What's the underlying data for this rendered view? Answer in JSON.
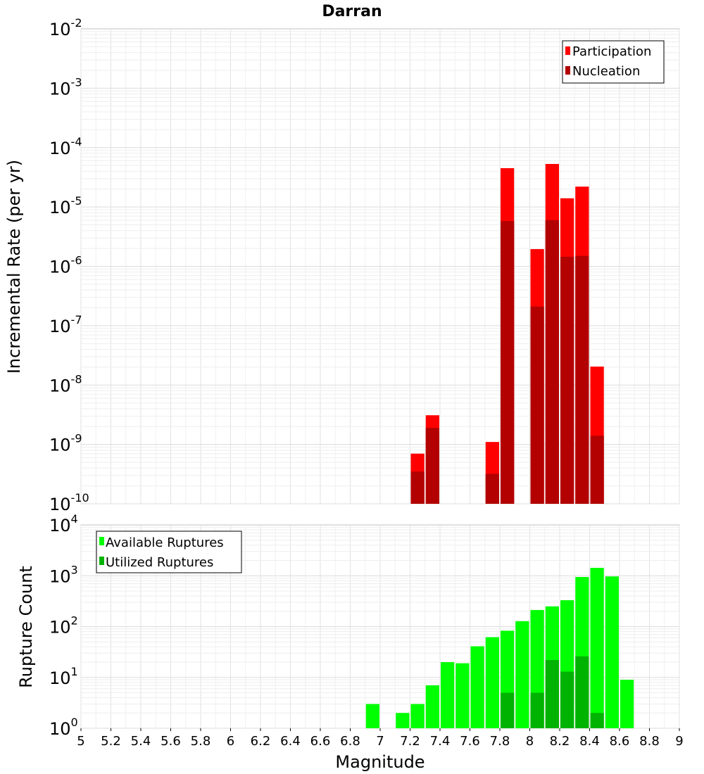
{
  "chart_data": [
    {
      "type": "bar",
      "title": "Darran",
      "ylabel": "Incremental Rate (per yr)",
      "yscale": "log",
      "ylim_exp": [
        -10,
        -2
      ],
      "xlim": [
        5,
        9
      ],
      "grid": true,
      "legend_position": "top-right",
      "series": [
        {
          "name": "Participation",
          "color": "#ff0000",
          "points": [
            {
              "x": 7.25,
              "y": 7e-10
            },
            {
              "x": 7.35,
              "y": 3.1e-09
            },
            {
              "x": 7.75,
              "y": 1.1e-09
            },
            {
              "x": 7.85,
              "y": 4.5e-05
            },
            {
              "x": 8.05,
              "y": 1.95e-06
            },
            {
              "x": 8.15,
              "y": 5.3e-05
            },
            {
              "x": 8.25,
              "y": 1.4e-05
            },
            {
              "x": 8.35,
              "y": 2.2e-05
            },
            {
              "x": 8.45,
              "y": 2.05e-08
            }
          ]
        },
        {
          "name": "Nucleation",
          "color": "#b30000",
          "points": [
            {
              "x": 7.25,
              "y": 3.5e-10
            },
            {
              "x": 7.35,
              "y": 1.9e-09
            },
            {
              "x": 7.75,
              "y": 3.2e-10
            },
            {
              "x": 7.85,
              "y": 5.8e-06
            },
            {
              "x": 8.05,
              "y": 2.1e-07
            },
            {
              "x": 8.15,
              "y": 6e-06
            },
            {
              "x": 8.25,
              "y": 1.45e-06
            },
            {
              "x": 8.35,
              "y": 1.5e-06
            },
            {
              "x": 8.45,
              "y": 1.4e-09
            }
          ]
        }
      ]
    },
    {
      "type": "bar",
      "title": "",
      "xlabel": "Magnitude",
      "ylabel": "Rupture Count",
      "yscale": "log",
      "ylim_exp": [
        0,
        4
      ],
      "xlim": [
        5,
        9
      ],
      "grid": true,
      "legend_position": "top-left",
      "x_ticks": [
        "5",
        "5.2",
        "5.4",
        "5.6",
        "5.8",
        "6",
        "6.2",
        "6.4",
        "6.6",
        "6.8",
        "7",
        "7.2",
        "7.4",
        "7.6",
        "7.8",
        "8",
        "8.2",
        "8.4",
        "8.6",
        "8.8",
        "9"
      ],
      "series": [
        {
          "name": "Available Ruptures",
          "color": "#00ff00",
          "points": [
            {
              "x": 6.95,
              "y": 3
            },
            {
              "x": 7.15,
              "y": 2
            },
            {
              "x": 7.25,
              "y": 3
            },
            {
              "x": 7.35,
              "y": 7
            },
            {
              "x": 7.45,
              "y": 20
            },
            {
              "x": 7.55,
              "y": 19
            },
            {
              "x": 7.65,
              "y": 41
            },
            {
              "x": 7.75,
              "y": 62
            },
            {
              "x": 7.85,
              "y": 83
            },
            {
              "x": 7.95,
              "y": 128
            },
            {
              "x": 8.05,
              "y": 212
            },
            {
              "x": 8.15,
              "y": 250
            },
            {
              "x": 8.25,
              "y": 330
            },
            {
              "x": 8.35,
              "y": 945
            },
            {
              "x": 8.45,
              "y": 1430
            },
            {
              "x": 8.55,
              "y": 970
            },
            {
              "x": 8.65,
              "y": 9
            }
          ]
        },
        {
          "name": "Utilized Ruptures",
          "color": "#00b300",
          "points": [
            {
              "x": 7.25,
              "y": 1
            },
            {
              "x": 7.35,
              "y": 1
            },
            {
              "x": 7.65,
              "y": 1
            },
            {
              "x": 7.75,
              "y": 1
            },
            {
              "x": 7.85,
              "y": 5
            },
            {
              "x": 8.05,
              "y": 5
            },
            {
              "x": 8.15,
              "y": 22
            },
            {
              "x": 8.25,
              "y": 13
            },
            {
              "x": 8.35,
              "y": 26
            },
            {
              "x": 8.45,
              "y": 2
            }
          ]
        }
      ]
    }
  ]
}
